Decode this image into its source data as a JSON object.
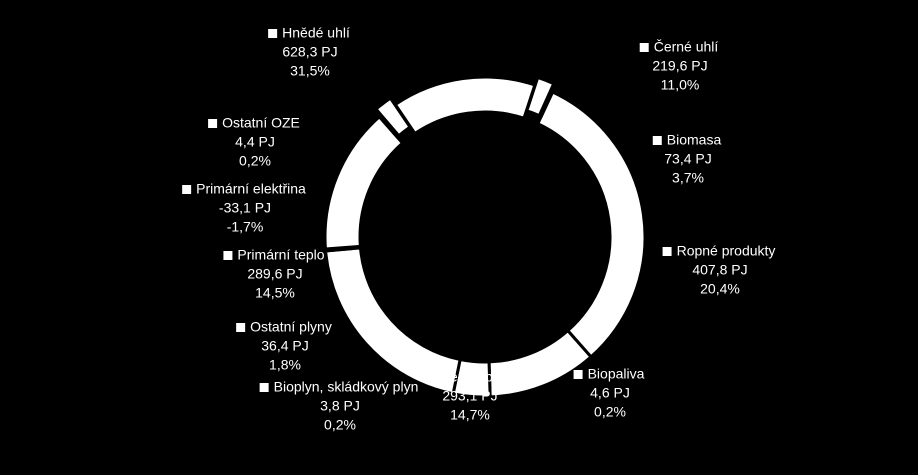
{
  "chart_data": {
    "type": "donut",
    "categories": [
      "Hnědé uhlí",
      "Černé uhlí",
      "Biomasa",
      "Ropné produkty",
      "Biopaliva",
      "Zemní plyn",
      "Bioplyn, skládkový plyn",
      "Ostatní plyny",
      "Primární teplo",
      "Primární elektřina",
      "Ostatní OZE"
    ],
    "values": [
      628.3,
      219.6,
      73.4,
      407.8,
      4.6,
      293.1,
      3.8,
      36.4,
      289.6,
      -33.1,
      4.4
    ],
    "value_labels": [
      "628,3 PJ",
      "219,6 PJ",
      "73,4 PJ",
      "407,8  PJ",
      "4,6  PJ",
      "293,1  PJ",
      "3,8  PJ",
      "36,4  PJ",
      "289,6  PJ",
      "-33,1  PJ",
      "4,4  PJ"
    ],
    "percents": [
      31.5,
      11.0,
      3.7,
      20.4,
      0.2,
      14.7,
      0.2,
      1.8,
      14.5,
      -1.7,
      0.2
    ],
    "percent_labels": [
      "31,5%",
      "11,0%",
      "3,7%",
      "20,4%",
      "0,2%",
      "14,7%",
      "0,2%",
      "1,8%",
      "14,5%",
      "-1,7%",
      "0,2%"
    ],
    "color": "#ffffff"
  }
}
